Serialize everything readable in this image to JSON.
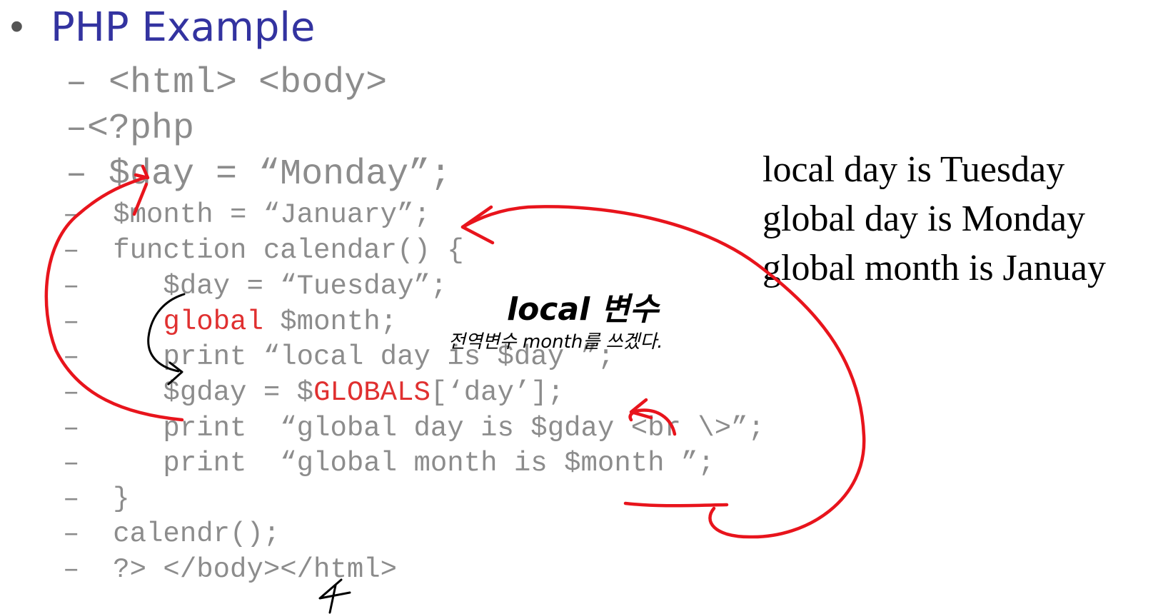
{
  "slide": {
    "bullet": "•",
    "title": "PHP Example",
    "dash": "–"
  },
  "code_lines": [
    {
      "text": " <html> <body>"
    },
    {
      "text": "<?php"
    },
    {
      "text": " $day = “Monday”;"
    },
    {
      "text": "  $month = “January”;"
    },
    {
      "text": "  function calendar() {"
    },
    {
      "text": "     $day = “Tuesday”;"
    },
    {
      "before": "     ",
      "red": "global",
      "after": " $month;"
    },
    {
      "text": "     print “local day is $day ”;"
    },
    {
      "before": "     $gday = $",
      "red": "GLOBALS",
      "after": "[‘day’];"
    },
    {
      "text": "     print  “global day is $gday <br \\>”;"
    },
    {
      "text": "     print  “global month is $month ”;"
    },
    {
      "text": "  }"
    },
    {
      "text": "  calendr();"
    },
    {
      "text": "  ?> </body></html>"
    }
  ],
  "output": {
    "line1": "local day is Tuesday",
    "line2": "global day is Monday",
    "line3": "global month is Januay"
  },
  "annotations": {
    "local_note": "local 변수",
    "global_note": "전역변수 month를 쓰겠다.",
    "red_color": "#e8141c",
    "ink_color": "#000000"
  }
}
